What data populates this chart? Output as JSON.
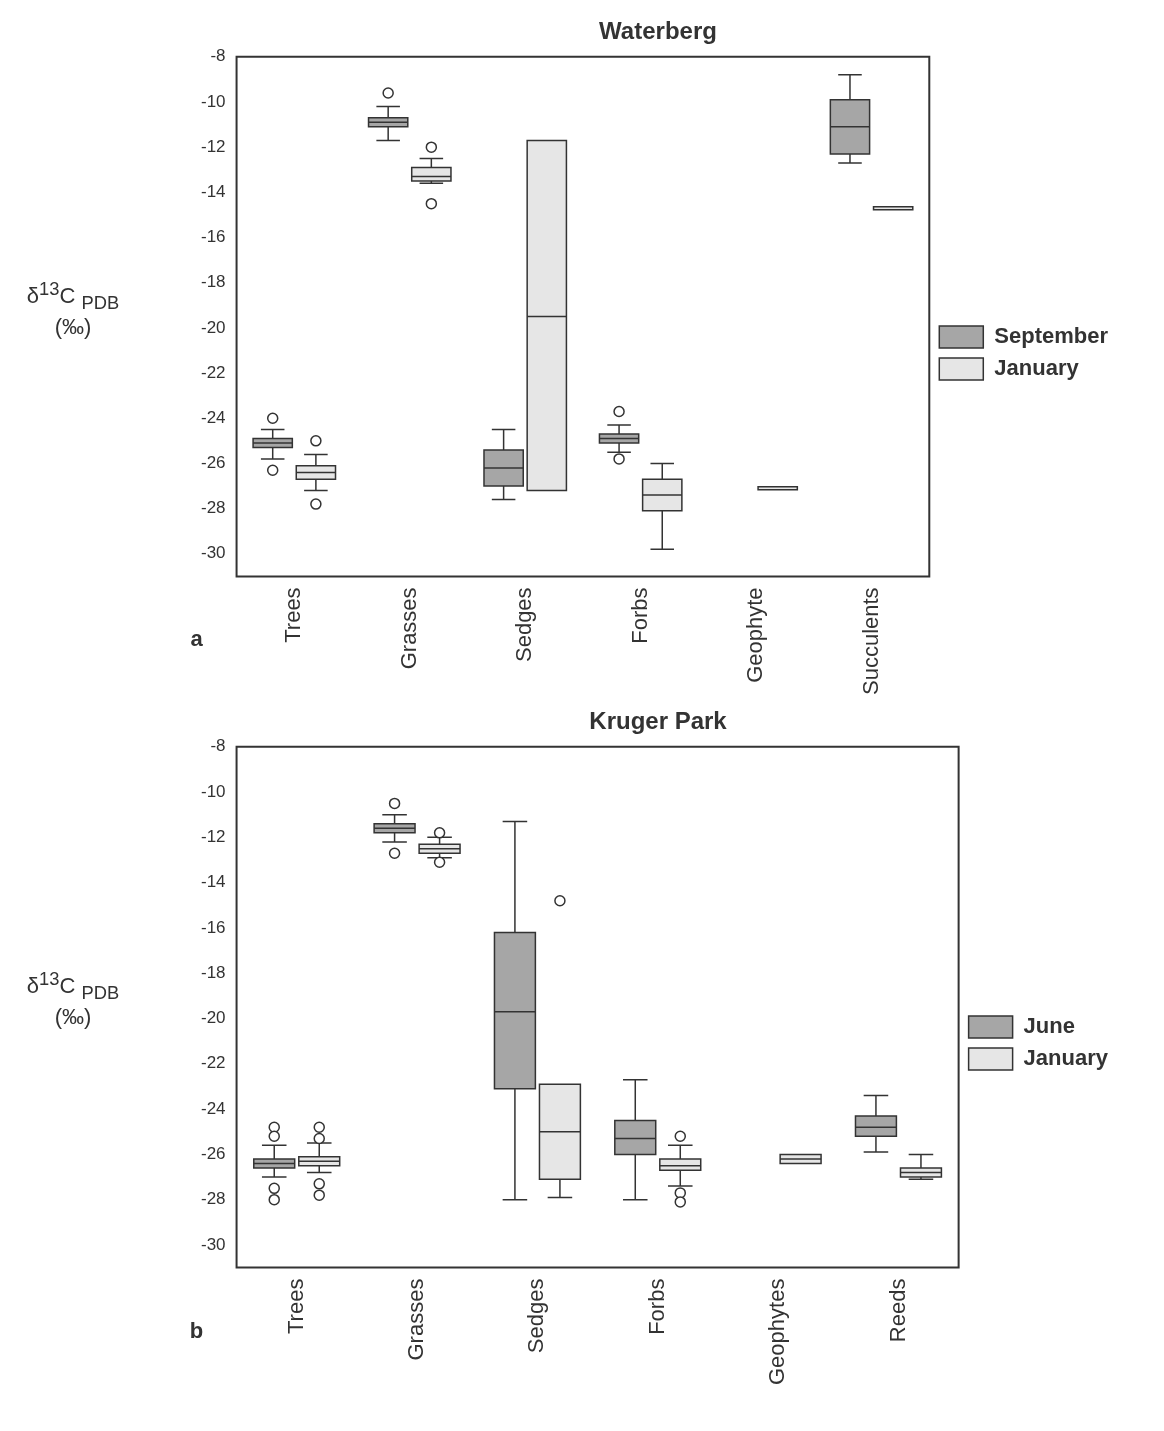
{
  "chart_data": [
    {
      "type": "box",
      "title": "Waterberg",
      "ylabel": "δ$^{13}$C $_{PDB}$ (‰)",
      "annotations": [
        "a"
      ],
      "legend": "right",
      "categories": [
        "Trees",
        "Grasses",
        "Sedges",
        "Forbs",
        "Geophyte",
        "Succulents"
      ],
      "ylim": [
        -31,
        -8
      ],
      "yticks": [
        -8,
        -10,
        -12,
        -14,
        -16,
        -18,
        -20,
        -22,
        -24,
        -26,
        -28,
        -30
      ],
      "series": [
        {
          "name": "September",
          "color": "#a6a6a6",
          "boxes": [
            {
              "low": -25.8,
              "q1": -25.3,
              "median": -25.1,
              "q3": -24.9,
              "high": -24.5,
              "outliers": [
                -24,
                -26.3
              ]
            },
            {
              "low": -11.7,
              "q1": -11.1,
              "median": -10.9,
              "q3": -10.7,
              "high": -10.2,
              "outliers": [
                -9.6
              ]
            },
            {
              "low": -27.6,
              "q1": -27,
              "median": -26.2,
              "q3": -25.4,
              "high": -24.5
            },
            {
              "low": -25.5,
              "q1": -25.1,
              "median": -24.9,
              "q3": -24.7,
              "high": -24.3,
              "outliers": [
                -23.7,
                -25.8
              ]
            },
            null,
            {
              "low": -12.7,
              "q1": -12.3,
              "median": -11.1,
              "q3": -9.9,
              "high": -8.8
            }
          ]
        },
        {
          "name": "January",
          "color": "#e6e6e6",
          "boxes": [
            {
              "low": -27.2,
              "q1": -26.7,
              "median": -26.4,
              "q3": -26.1,
              "high": -25.6,
              "outliers": [
                -25,
                -27.8
              ]
            },
            {
              "low": -13.6,
              "q1": -13.5,
              "median": -13.3,
              "q3": -12.9,
              "high": -12.5,
              "outliers": [
                -12,
                -14.5
              ]
            },
            {
              "low": -27.2,
              "q1": -27.2,
              "median": -19.5,
              "q3": -11.7,
              "high": -11.7
            },
            {
              "low": -29.8,
              "q1": -28.1,
              "median": -27.4,
              "q3": -26.7,
              "high": -26
            },
            {
              "low": -27.1,
              "q1": -27.1,
              "median": -27.1,
              "q3": -27.1,
              "high": -27.1
            },
            {
              "low": -14.7,
              "q1": -14.7,
              "median": -14.7,
              "q3": -14.7,
              "high": -14.7
            }
          ]
        }
      ]
    },
    {
      "type": "box",
      "title": "Kruger Park",
      "ylabel": "δ$^{13}$C $_{PDB}$ (‰)",
      "annotations": [
        "b"
      ],
      "legend": "right",
      "categories": [
        "Trees",
        "Grasses",
        "Sedges",
        "Forbs",
        "Geophytes",
        "Reeds"
      ],
      "ylim": [
        -31,
        -8
      ],
      "yticks": [
        -8,
        -10,
        -12,
        -14,
        -16,
        -18,
        -20,
        -22,
        -24,
        -26,
        -28,
        -30
      ],
      "series": [
        {
          "name": "June",
          "color": "#a6a6a6",
          "boxes": [
            {
              "low": -27,
              "q1": -26.6,
              "median": -26.4,
              "q3": -26.2,
              "high": -25.6,
              "outliers": [
                -24.8,
                -25.2,
                -27.5,
                -28
              ]
            },
            {
              "low": -12.2,
              "q1": -11.8,
              "median": -11.6,
              "q3": -11.4,
              "high": -11,
              "outliers": [
                -10.5,
                -12.7
              ]
            },
            {
              "low": -28,
              "q1": -23.1,
              "median": -19.7,
              "q3": -16.2,
              "high": -11.3
            },
            {
              "low": -28,
              "q1": -26,
              "median": -25.3,
              "q3": -24.5,
              "high": -22.7
            },
            null,
            {
              "low": -25.9,
              "q1": -25.2,
              "median": -24.8,
              "q3": -24.3,
              "high": -23.4
            }
          ]
        },
        {
          "name": "January",
          "color": "#e6e6e6",
          "boxes": [
            {
              "low": -26.8,
              "q1": -26.5,
              "median": -26.3,
              "q3": -26.1,
              "high": -25.5,
              "outliers": [
                -24.8,
                -25.3,
                -27.3,
                -27.8
              ]
            },
            {
              "low": -12.9,
              "q1": -12.7,
              "median": -12.5,
              "q3": -12.3,
              "high": -12,
              "outliers": [
                -11.8,
                -13.1
              ]
            },
            {
              "low": -27.9,
              "q1": -27.1,
              "median": -25,
              "q3": -22.9,
              "high": -22.9,
              "outliers": [
                -14.8
              ]
            },
            {
              "low": -27.4,
              "q1": -26.7,
              "median": -26.5,
              "q3": -26.2,
              "high": -25.6,
              "outliers": [
                -25.2,
                -27.7,
                -28.1
              ]
            },
            {
              "low": -26.4,
              "q1": -26.4,
              "median": -26.2,
              "q3": -26,
              "high": -26
            },
            {
              "low": -27.1,
              "q1": -27,
              "median": -26.8,
              "q3": -26.6,
              "high": -26
            }
          ]
        }
      ]
    }
  ]
}
